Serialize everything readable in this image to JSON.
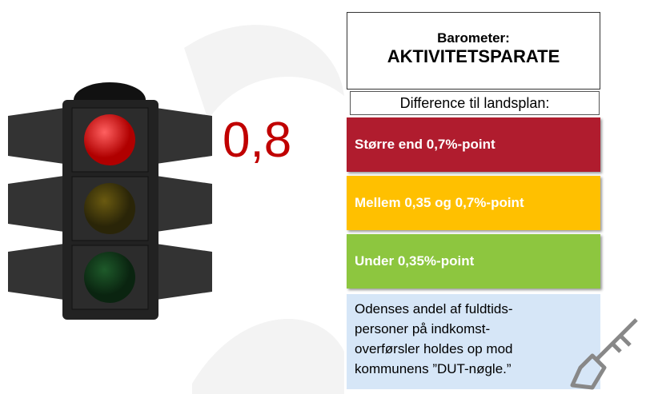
{
  "header": {
    "label": "Barometer:",
    "title": "AKTIVITETSPARATE"
  },
  "subheader": "Difference til landsplan:",
  "indicator": {
    "value": "0,8"
  },
  "levels": [
    {
      "label": "Større end 0,7%-point",
      "color": "#b01c2e"
    },
    {
      "label": "Mellem 0,35 og 0,7%-point",
      "color": "#ffc000"
    },
    {
      "label": "Under 0,35%-point",
      "color": "#8dc63f"
    }
  ],
  "description": [
    "Odenses andel af fuldtids-",
    "personer på indkomst-",
    "overførsler holdes op mod",
    "kommunens ”DUT-nøgle.”"
  ]
}
